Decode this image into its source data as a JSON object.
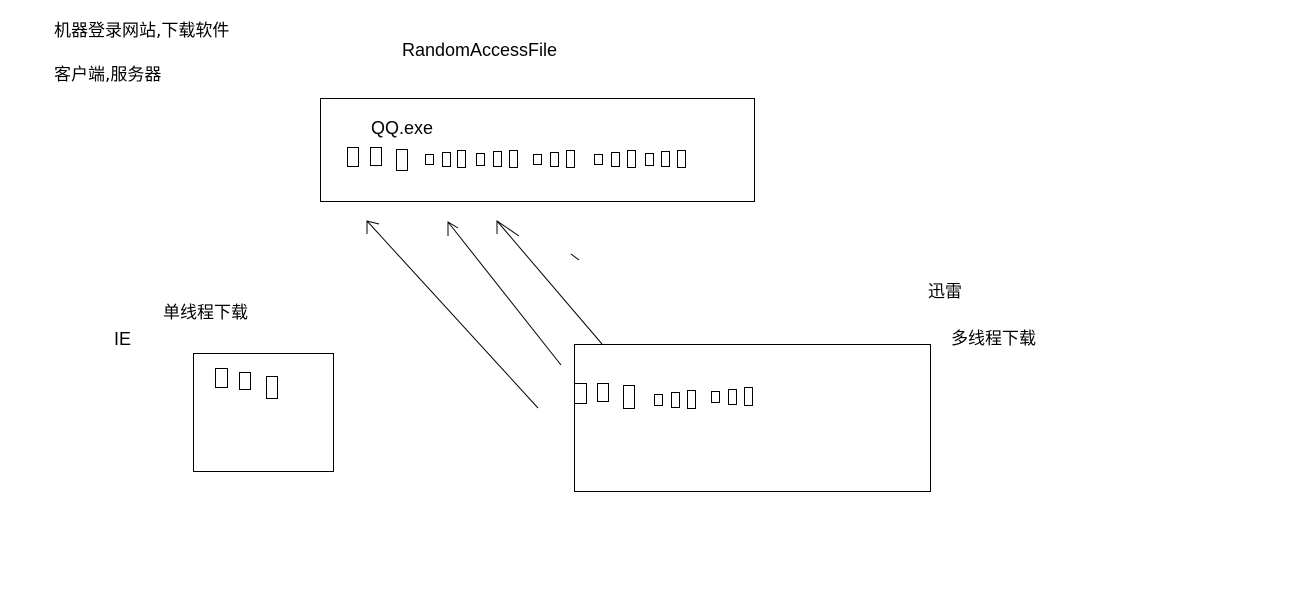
{
  "notes": {
    "line1": "机器登录网站,下载软件",
    "line2": "客户端,服务器"
  },
  "class_label": "RandomAccessFile",
  "file_box": {
    "filename": "QQ.exe"
  },
  "ie": {
    "browser_label": "IE",
    "mode_label": "单线程下载"
  },
  "xunlei": {
    "app_label": "迅雷",
    "mode_label": "多线程下载"
  }
}
